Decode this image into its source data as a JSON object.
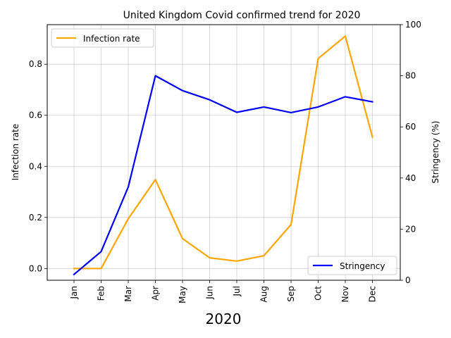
{
  "chart_data": {
    "type": "line",
    "title": "United Kingdom Covid confirmed trend for 2020",
    "xlabel": "2020",
    "ylabel_left": "Infection rate",
    "ylabel_right": "Stringency (%)",
    "categories": [
      "Jan",
      "Feb",
      "Mar",
      "Apr",
      "May",
      "Jun",
      "Jul",
      "Aug",
      "Sep",
      "Oct",
      "Nov",
      "Dec"
    ],
    "ylim_left": [
      -0.046,
      0.955
    ],
    "ylim_right": [
      0,
      100
    ],
    "yticks_left": [
      "0.0",
      "0.2",
      "0.4",
      "0.6",
      "0.8"
    ],
    "yticks_right": [
      "0",
      "20",
      "40",
      "60",
      "80",
      "100"
    ],
    "grid": true,
    "series": [
      {
        "name": "Infection rate",
        "axis": "left",
        "color": "#FFA500",
        "legend_position": "upper-left",
        "values": [
          0.0,
          0.0,
          0.195,
          0.348,
          0.117,
          0.042,
          0.029,
          0.05,
          0.172,
          0.822,
          0.91,
          0.515
        ]
      },
      {
        "name": "Stringency",
        "axis": "right",
        "color": "#0000FF",
        "legend_position": "lower-right",
        "values": [
          2.3,
          11.2,
          36.5,
          80.0,
          74.2,
          70.6,
          65.7,
          67.8,
          65.6,
          67.8,
          71.8,
          69.8
        ]
      }
    ]
  }
}
